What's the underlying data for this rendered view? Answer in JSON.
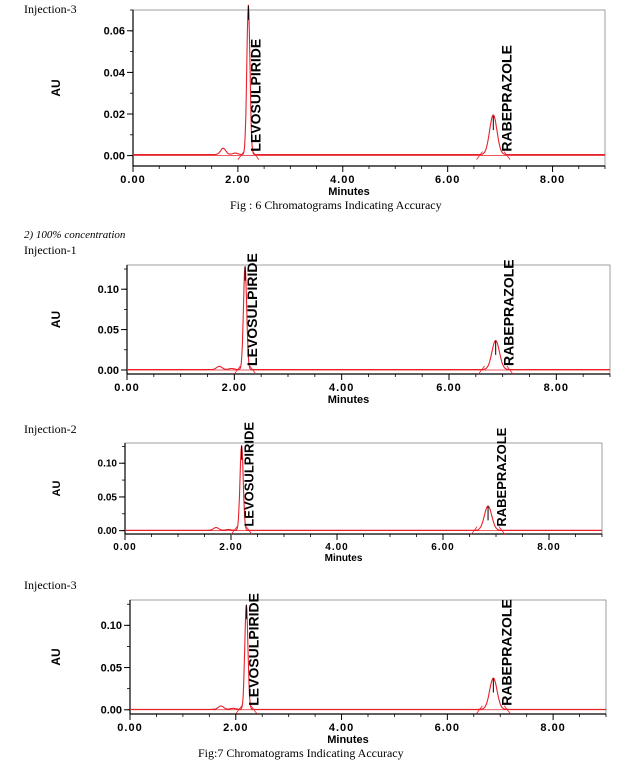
{
  "labels": {
    "injection_a": "Injection-3",
    "caption_fig6": "Fig : 6 Chromatograms Indicating Accuracy",
    "section": "2)    100% concentration",
    "injection_b": "Injection-1",
    "injection_c": "Injection-2",
    "injection_d": "Injection-3",
    "caption_fig7": "Fig:7 Chromatograms Indicating Accuracy"
  },
  "colors": {
    "trace": "#e8202a",
    "axis": "#000000",
    "baseline": "#e8202a"
  },
  "chart_data": [
    {
      "type": "line",
      "xlabel": "Minutes",
      "ylabel": "AU",
      "xlim": [
        0,
        9
      ],
      "ylim": [
        -0.005,
        0.07
      ],
      "xticks": [
        0,
        2,
        4,
        6,
        8
      ],
      "xtick_labels": [
        "0.00",
        "2.00",
        "4.00",
        "6.00",
        "8.00"
      ],
      "yticks": [
        0,
        0.02,
        0.04,
        0.06
      ],
      "ytick_labels": [
        "0.00",
        "0.02",
        "0.04",
        "0.06"
      ],
      "peaks": [
        {
          "name": "LEVOSULPIRIDE",
          "rt": 2.2,
          "height": 0.072
        },
        {
          "name": "RABEPRAZOLE",
          "rt": 6.87,
          "height": 0.019
        }
      ],
      "minor_peaks": [
        {
          "rt": 1.72,
          "height": 0.003
        }
      ]
    },
    {
      "type": "line",
      "xlabel": "Minutes",
      "ylabel": "AU",
      "xlim": [
        0,
        9
      ],
      "ylim": [
        -0.005,
        0.13
      ],
      "xticks": [
        0,
        2,
        4,
        6,
        8
      ],
      "xtick_labels": [
        "0.00",
        "2.00",
        "4.00",
        "6.00",
        "8.00"
      ],
      "yticks": [
        0,
        0.05,
        0.1
      ],
      "ytick_labels": [
        "0.00",
        "0.05",
        "0.10"
      ],
      "peaks": [
        {
          "name": "LEVOSULPIRIDE",
          "rt": 2.2,
          "height": 0.128
        },
        {
          "name": "RABEPRAZOLE",
          "rt": 6.87,
          "height": 0.036
        }
      ],
      "minor_peaks": [
        {
          "rt": 1.72,
          "height": 0.004
        }
      ]
    },
    {
      "type": "line",
      "xlabel": "Minutes",
      "ylabel": "AU",
      "xlim": [
        0,
        9
      ],
      "ylim": [
        -0.005,
        0.13
      ],
      "xticks": [
        0,
        2,
        4,
        6,
        8
      ],
      "xtick_labels": [
        "0.00",
        "2.00",
        "4.00",
        "6.00",
        "8.00"
      ],
      "yticks": [
        0,
        0.05,
        0.1
      ],
      "ytick_labels": [
        "0.00",
        "0.05",
        "0.10"
      ],
      "peaks": [
        {
          "name": "LEVOSULPIRIDE",
          "rt": 2.2,
          "height": 0.126
        },
        {
          "name": "RABEPRAZOLE",
          "rt": 6.85,
          "height": 0.036
        }
      ],
      "minor_peaks": [
        {
          "rt": 1.72,
          "height": 0.004
        }
      ]
    },
    {
      "type": "line",
      "xlabel": "Minutes",
      "ylabel": "AU",
      "xlim": [
        0,
        9
      ],
      "ylim": [
        -0.005,
        0.13
      ],
      "xticks": [
        0,
        2,
        4,
        6,
        8
      ],
      "xtick_labels": [
        "0.00",
        "2.00",
        "4.00",
        "6.00",
        "8.00"
      ],
      "yticks": [
        0,
        0.05,
        0.1
      ],
      "ytick_labels": [
        "0.00",
        "0.05",
        "0.10"
      ],
      "peaks": [
        {
          "name": "LEVOSULPIRIDE",
          "rt": 2.2,
          "height": 0.124
        },
        {
          "name": "RABEPRAZOLE",
          "rt": 6.87,
          "height": 0.037
        }
      ],
      "minor_peaks": [
        {
          "rt": 1.72,
          "height": 0.004
        }
      ]
    }
  ]
}
